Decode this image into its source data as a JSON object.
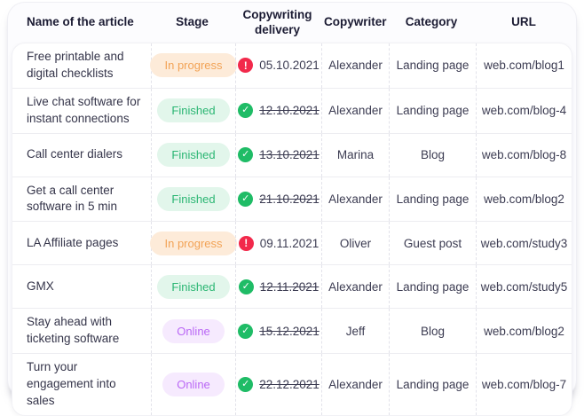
{
  "table": {
    "columns": [
      {
        "key": "name",
        "label": "Name of the article"
      },
      {
        "key": "stage",
        "label": "Stage"
      },
      {
        "key": "delivery",
        "label": "Copywriting delivery"
      },
      {
        "key": "copywriter",
        "label": "Copywriter"
      },
      {
        "key": "category",
        "label": "Category"
      },
      {
        "key": "url",
        "label": "URL"
      }
    ],
    "rows": [
      {
        "name": "Free printable and digital checklists",
        "stage": "In progress",
        "stage_type": "in-progress",
        "delivery": "05.10.2021",
        "delivered": false,
        "copywriter": "Alexander",
        "category": "Landing page",
        "url": "web.com/blog1"
      },
      {
        "name": "Live chat software for instant connections",
        "stage": "Finished",
        "stage_type": "finished",
        "delivery": "12.10.2021",
        "delivered": true,
        "copywriter": "Alexander",
        "category": "Landing page",
        "url": "web.com/blog-4"
      },
      {
        "name": "Call center dialers",
        "stage": "Finished",
        "stage_type": "finished",
        "delivery": "13.10.2021",
        "delivered": true,
        "copywriter": "Marina",
        "category": "Blog",
        "url": "web.com/blog-8"
      },
      {
        "name": "Get a call center software in 5 min",
        "stage": "Finished",
        "stage_type": "finished",
        "delivery": "21.10.2021",
        "delivered": true,
        "copywriter": "Alexander",
        "category": "Landing page",
        "url": "web.com/blog2"
      },
      {
        "name": "LA Affiliate pages",
        "stage": "In progress",
        "stage_type": "in-progress",
        "delivery": "09.11.2021",
        "delivered": false,
        "copywriter": "Oliver",
        "category": "Guest post",
        "url": "web.com/study3"
      },
      {
        "name": "GMX",
        "stage": "Finished",
        "stage_type": "finished",
        "delivery": "12.11.2021",
        "delivered": true,
        "copywriter": "Alexander",
        "category": "Landing page",
        "url": "web.com/study5"
      },
      {
        "name": "Stay ahead with ticketing software",
        "stage": "Online",
        "stage_type": "online",
        "delivery": "15.12.2021",
        "delivered": true,
        "copywriter": "Jeff",
        "category": "Blog",
        "url": "web.com/blog2"
      },
      {
        "name": "Turn your engagement into sales",
        "stage": "Online",
        "stage_type": "online",
        "delivery": "22.12.2021",
        "delivered": true,
        "copywriter": "Alexander",
        "category": "Landing page",
        "url": "web.com/blog-7"
      }
    ]
  },
  "icons": {
    "delivered": "check-circle-icon",
    "overdue": "alert-circle-icon"
  },
  "glyphs": {
    "check": "✓",
    "alert": "!"
  },
  "colors": {
    "badge_in_progress_bg": "#fdebd9",
    "badge_in_progress_text": "#f2a356",
    "badge_finished_bg": "#e2f6eb",
    "badge_finished_text": "#2bb673",
    "badge_online_bg": "#f6eafe",
    "badge_online_text": "#ba68f5",
    "icon_done": "#1fbc66",
    "icon_overdue": "#f2294b",
    "header_text": "#1b1b33",
    "body_text": "#3c3c52"
  }
}
